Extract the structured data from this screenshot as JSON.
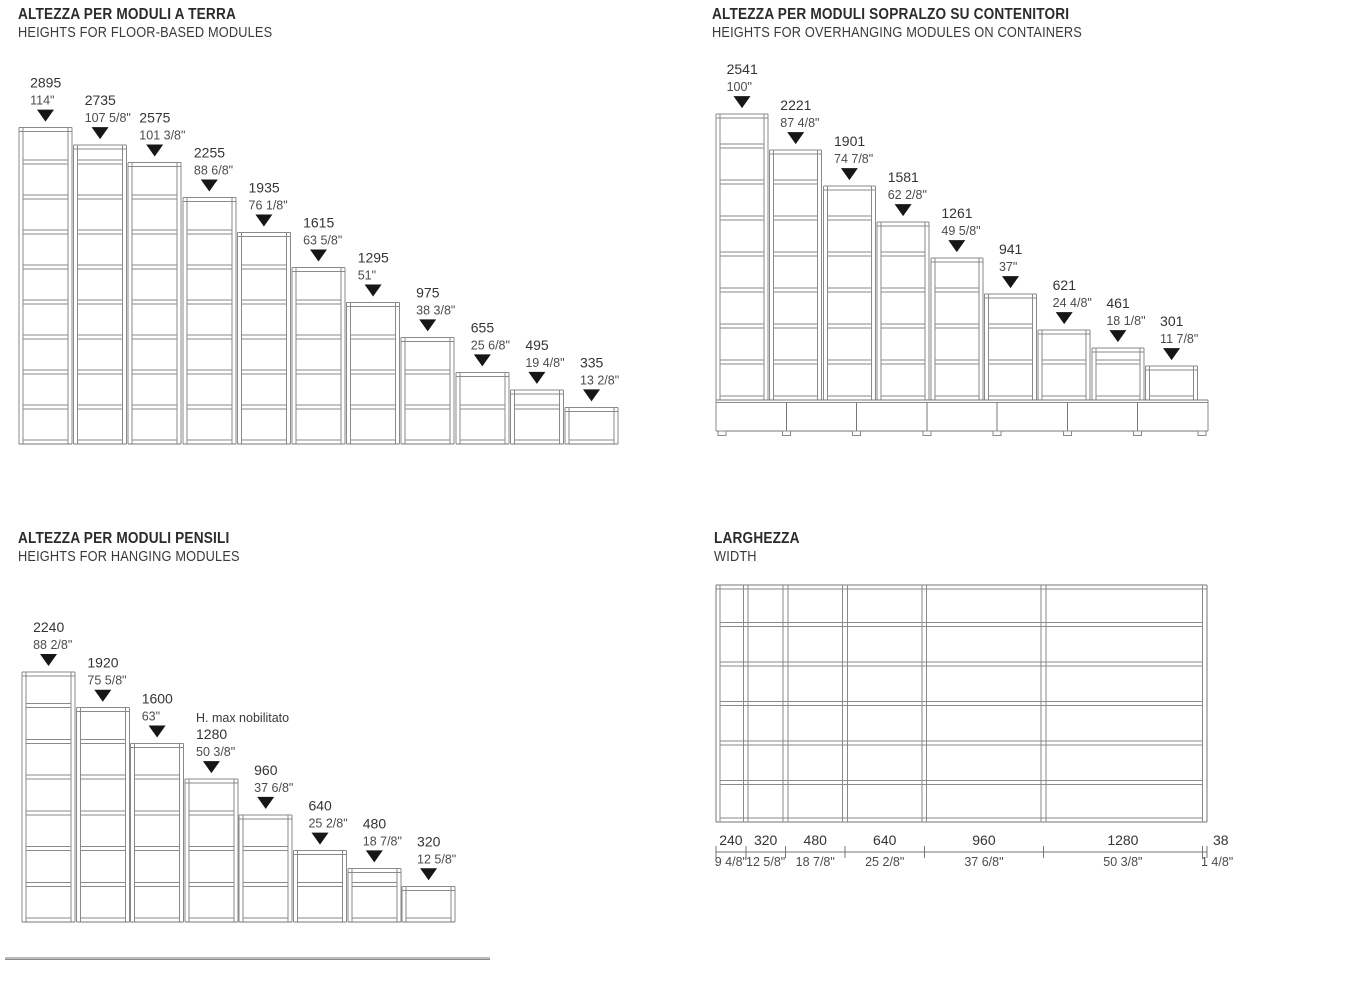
{
  "colors": {
    "background": "#ffffff",
    "line": "#8a8a8a",
    "line_dark": "#777777",
    "text": "#343434",
    "text_secondary": "#4c4c4c",
    "marker": "#161616"
  },
  "sections": {
    "floor_modules": {
      "title_it": "ALTEZZA PER MODULI A TERRA",
      "title_en": "HEIGHTS FOR FLOOR-BASED MODULES",
      "shelf_step_mm": 320,
      "modules": [
        {
          "mm": 2895,
          "label_mm": "2895",
          "label_in": "114\""
        },
        {
          "mm": 2735,
          "label_mm": "2735",
          "label_in": "107 5/8\""
        },
        {
          "mm": 2575,
          "label_mm": "2575",
          "label_in": "101 3/8\""
        },
        {
          "mm": 2255,
          "label_mm": "2255",
          "label_in": "88 6/8\""
        },
        {
          "mm": 1935,
          "label_mm": "1935",
          "label_in": "76 1/8\""
        },
        {
          "mm": 1615,
          "label_mm": "1615",
          "label_in": "63 5/8\""
        },
        {
          "mm": 1295,
          "label_mm": "1295",
          "label_in": "51\""
        },
        {
          "mm": 975,
          "label_mm": "975",
          "label_in": "38 3/8\""
        },
        {
          "mm": 655,
          "label_mm": "655",
          "label_in": "25 6/8\""
        },
        {
          "mm": 495,
          "label_mm": "495",
          "label_in": "19 4/8\""
        },
        {
          "mm": 335,
          "label_mm": "335",
          "label_in": "13 2/8\""
        }
      ]
    },
    "overhang_modules": {
      "title_it": "ALTEZZA PER MODULI SOPRALZO SU CONTENITORI",
      "title_en": "HEIGHTS FOR OVERHANGING MODULES ON CONTAINERS",
      "shelf_step_mm": 320,
      "container_compartments": 7,
      "modules": [
        {
          "mm": 2541,
          "label_mm": "2541",
          "label_in": "100\""
        },
        {
          "mm": 2221,
          "label_mm": "2221",
          "label_in": "87 4/8\""
        },
        {
          "mm": 1901,
          "label_mm": "1901",
          "label_in": "74 7/8\""
        },
        {
          "mm": 1581,
          "label_mm": "1581",
          "label_in": "62 2/8\""
        },
        {
          "mm": 1261,
          "label_mm": "1261",
          "label_in": "49 5/8\""
        },
        {
          "mm": 941,
          "label_mm": "941",
          "label_in": "37\""
        },
        {
          "mm": 621,
          "label_mm": "621",
          "label_in": "24 4/8\""
        },
        {
          "mm": 461,
          "label_mm": "461",
          "label_in": "18 1/8\""
        },
        {
          "mm": 301,
          "label_mm": "301",
          "label_in": "11 7/8\""
        }
      ]
    },
    "hanging_modules": {
      "title_it": "ALTEZZA PER MODULI PENSILI",
      "title_en": "HEIGHTS FOR HANGING MODULES",
      "shelf_step_mm": 320,
      "modules": [
        {
          "mm": 2240,
          "label_mm": "2240",
          "label_in": "88 2/8\""
        },
        {
          "mm": 1920,
          "label_mm": "1920",
          "label_in": "75 5/8\""
        },
        {
          "mm": 1600,
          "label_mm": "1600",
          "label_in": "63\""
        },
        {
          "mm": 1280,
          "label_mm": "1280",
          "label_in": "50 3/8\"",
          "note": "H. max nobilitato"
        },
        {
          "mm": 960,
          "label_mm": "960",
          "label_in": "37 6/8\""
        },
        {
          "mm": 640,
          "label_mm": "640",
          "label_in": "25 2/8\""
        },
        {
          "mm": 480,
          "label_mm": "480",
          "label_in": "18 7/8\""
        },
        {
          "mm": 320,
          "label_mm": "320",
          "label_in": "12 5/8\""
        }
      ]
    },
    "width": {
      "title_it": "LARGHEZZA",
      "title_en": "WIDTH",
      "segments": [
        {
          "mm": 240,
          "label_mm": "240",
          "label_in": "9 4/8\""
        },
        {
          "mm": 320,
          "label_mm": "320",
          "label_in": "12 5/8\""
        },
        {
          "mm": 480,
          "label_mm": "480",
          "label_in": "18 7/8\""
        },
        {
          "mm": 640,
          "label_mm": "640",
          "label_in": "25 2/8\""
        },
        {
          "mm": 960,
          "label_mm": "960",
          "label_in": "37 6/8\""
        },
        {
          "mm": 1280,
          "label_mm": "1280",
          "label_in": "50 3/8\""
        }
      ],
      "end_panel": {
        "mm": 38,
        "label_mm": "38",
        "label_in": "1 4/8\""
      }
    }
  }
}
